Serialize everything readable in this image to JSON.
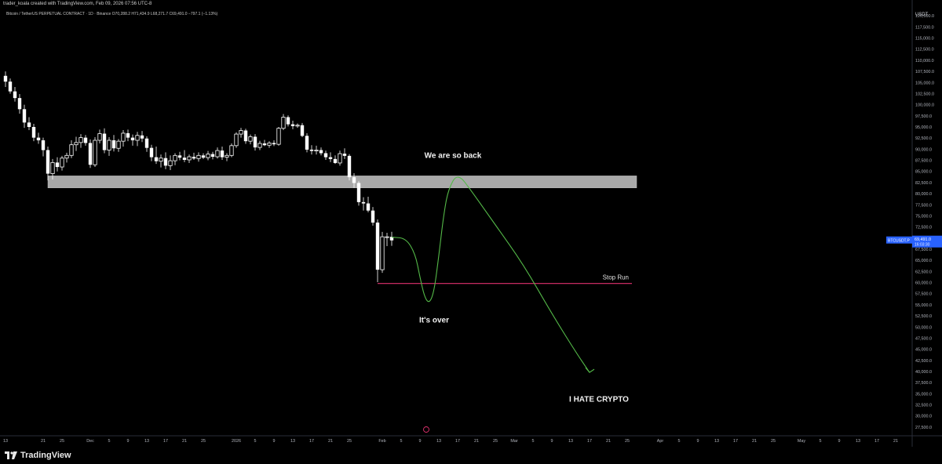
{
  "header": {
    "attribution": "trader_koala created with TradingView.com, Feb 09, 2026 07:56 UTC-8",
    "symbol_line": "Bitcoin / TetherUS PERPETUAL CONTRACT · 1D · Binance  O70,288.2  H71,434.9  L68,271.7  C69,491.0  −797.1 (−1.13%)"
  },
  "footer": {
    "brand": "TradingView"
  },
  "chart_data": {
    "type": "candlestick",
    "currency": "USDT",
    "ylim": [
      26250,
      122500
    ],
    "y_ticks": [
      120000,
      117500,
      115000,
      112500,
      110000,
      107500,
      105000,
      102500,
      100000,
      97500,
      95000,
      92500,
      90000,
      87500,
      85000,
      82500,
      80000,
      77500,
      75000,
      72500,
      70000,
      67500,
      65000,
      62500,
      60000,
      57500,
      55000,
      52500,
      50000,
      47500,
      45000,
      42500,
      40000,
      37500,
      35000,
      32500,
      30000,
      27500
    ],
    "y_tick_labels": [
      "120,000.0",
      "117,500.0",
      "115,000.0",
      "112,500.0",
      "110,000.0",
      "107,500.0",
      "105,000.0",
      "102,500.0",
      "100,000.0",
      "97,500.0",
      "95,000.0",
      "92,500.0",
      "90,000.0",
      "87,500.0",
      "85,000.0",
      "82,500.0",
      "80,000.0",
      "77,500.0",
      "75,000.0",
      "72,500.0",
      "70,000.0",
      "67,500.0",
      "65,000.0",
      "62,500.0",
      "60,000.0",
      "57,500.0",
      "55,000.0",
      "52,500.0",
      "50,000.0",
      "47,500.0",
      "45,000.0",
      "42,500.0",
      "40,000.0",
      "37,500.0",
      "35,000.0",
      "32,500.0",
      "30,000.0",
      "27,500.0"
    ],
    "x_labels": [
      {
        "day": 0,
        "label": "13"
      },
      {
        "day": 8,
        "label": "21"
      },
      {
        "day": 12,
        "label": "25"
      },
      {
        "day": 18,
        "label": "Dec"
      },
      {
        "day": 22,
        "label": "5"
      },
      {
        "day": 26,
        "label": "9"
      },
      {
        "day": 30,
        "label": "13"
      },
      {
        "day": 34,
        "label": "17"
      },
      {
        "day": 38,
        "label": "21"
      },
      {
        "day": 42,
        "label": "25"
      },
      {
        "day": 49,
        "label": "2026"
      },
      {
        "day": 53,
        "label": "5"
      },
      {
        "day": 57,
        "label": "9"
      },
      {
        "day": 61,
        "label": "13"
      },
      {
        "day": 65,
        "label": "17"
      },
      {
        "day": 69,
        "label": "21"
      },
      {
        "day": 73,
        "label": "25"
      },
      {
        "day": 80,
        "label": "Feb"
      },
      {
        "day": 84,
        "label": "5"
      },
      {
        "day": 88,
        "label": "9"
      },
      {
        "day": 92,
        "label": "13"
      },
      {
        "day": 96,
        "label": "17"
      },
      {
        "day": 100,
        "label": "21"
      },
      {
        "day": 104,
        "label": "25"
      },
      {
        "day": 108,
        "label": "Mar"
      },
      {
        "day": 112,
        "label": "5"
      },
      {
        "day": 116,
        "label": "9"
      },
      {
        "day": 120,
        "label": "13"
      },
      {
        "day": 124,
        "label": "17"
      },
      {
        "day": 128,
        "label": "21"
      },
      {
        "day": 132,
        "label": "25"
      },
      {
        "day": 139,
        "label": "Apr"
      },
      {
        "day": 143,
        "label": "5"
      },
      {
        "day": 147,
        "label": "9"
      },
      {
        "day": 151,
        "label": "13"
      },
      {
        "day": 155,
        "label": "17"
      },
      {
        "day": 159,
        "label": "21"
      },
      {
        "day": 163,
        "label": "25"
      },
      {
        "day": 169,
        "label": "May"
      },
      {
        "day": 173,
        "label": "5"
      },
      {
        "day": 177,
        "label": "9"
      },
      {
        "day": 181,
        "label": "13"
      },
      {
        "day": 185,
        "label": "17"
      },
      {
        "day": 189,
        "label": "21"
      }
    ],
    "candles": [
      {
        "day": 0,
        "o": 106500,
        "h": 107500,
        "l": 104000,
        "c": 105200
      },
      {
        "day": 1,
        "o": 105200,
        "h": 105900,
        "l": 102500,
        "c": 103000
      },
      {
        "day": 2,
        "o": 103000,
        "h": 104000,
        "l": 100700,
        "c": 101500
      },
      {
        "day": 3,
        "o": 101500,
        "h": 102400,
        "l": 98000,
        "c": 99000
      },
      {
        "day": 4,
        "o": 99000,
        "h": 100000,
        "l": 94800,
        "c": 96000
      },
      {
        "day": 5,
        "o": 96000,
        "h": 97200,
        "l": 94300,
        "c": 95000
      },
      {
        "day": 6,
        "o": 95000,
        "h": 95700,
        "l": 91800,
        "c": 92600
      },
      {
        "day": 7,
        "o": 92600,
        "h": 93700,
        "l": 91200,
        "c": 92000
      },
      {
        "day": 8,
        "o": 92000,
        "h": 92600,
        "l": 88400,
        "c": 89800
      },
      {
        "day": 9,
        "o": 89800,
        "h": 90600,
        "l": 83000,
        "c": 84500
      },
      {
        "day": 10,
        "o": 84500,
        "h": 87800,
        "l": 83200,
        "c": 87000
      },
      {
        "day": 11,
        "o": 87000,
        "h": 88200,
        "l": 85000,
        "c": 86000
      },
      {
        "day": 12,
        "o": 86000,
        "h": 88500,
        "l": 85200,
        "c": 88000
      },
      {
        "day": 13,
        "o": 88000,
        "h": 89200,
        "l": 87000,
        "c": 88600
      },
      {
        "day": 14,
        "o": 88600,
        "h": 92000,
        "l": 88000,
        "c": 91000
      },
      {
        "day": 15,
        "o": 91000,
        "h": 92800,
        "l": 89600,
        "c": 91500
      },
      {
        "day": 16,
        "o": 91500,
        "h": 93400,
        "l": 90300,
        "c": 92600
      },
      {
        "day": 17,
        "o": 92600,
        "h": 93200,
        "l": 90800,
        "c": 91400
      },
      {
        "day": 18,
        "o": 91400,
        "h": 92200,
        "l": 85800,
        "c": 86500
      },
      {
        "day": 19,
        "o": 86500,
        "h": 92700,
        "l": 86000,
        "c": 92000
      },
      {
        "day": 20,
        "o": 92000,
        "h": 94400,
        "l": 91300,
        "c": 93500
      },
      {
        "day": 21,
        "o": 93500,
        "h": 94700,
        "l": 89100,
        "c": 89800
      },
      {
        "day": 22,
        "o": 89800,
        "h": 92700,
        "l": 88500,
        "c": 92000
      },
      {
        "day": 23,
        "o": 92000,
        "h": 93200,
        "l": 89500,
        "c": 90200
      },
      {
        "day": 24,
        "o": 90200,
        "h": 92300,
        "l": 89400,
        "c": 91800
      },
      {
        "day": 25,
        "o": 91800,
        "h": 94300,
        "l": 90600,
        "c": 93600
      },
      {
        "day": 26,
        "o": 93600,
        "h": 94400,
        "l": 91800,
        "c": 92600
      },
      {
        "day": 27,
        "o": 92600,
        "h": 93300,
        "l": 90800,
        "c": 92000
      },
      {
        "day": 28,
        "o": 92000,
        "h": 93900,
        "l": 90700,
        "c": 93100
      },
      {
        "day": 29,
        "o": 93100,
        "h": 94100,
        "l": 91600,
        "c": 92400
      },
      {
        "day": 30,
        "o": 92400,
        "h": 92900,
        "l": 89400,
        "c": 90300
      },
      {
        "day": 31,
        "o": 90300,
        "h": 91000,
        "l": 87300,
        "c": 88200
      },
      {
        "day": 32,
        "o": 88200,
        "h": 90600,
        "l": 86700,
        "c": 87300
      },
      {
        "day": 33,
        "o": 87300,
        "h": 88800,
        "l": 85900,
        "c": 88000
      },
      {
        "day": 34,
        "o": 88000,
        "h": 89300,
        "l": 85500,
        "c": 86300
      },
      {
        "day": 35,
        "o": 86300,
        "h": 88600,
        "l": 85300,
        "c": 87400
      },
      {
        "day": 36,
        "o": 87400,
        "h": 89100,
        "l": 86400,
        "c": 88600
      },
      {
        "day": 37,
        "o": 88600,
        "h": 89400,
        "l": 87500,
        "c": 88100
      },
      {
        "day": 38,
        "o": 88100,
        "h": 89800,
        "l": 87100,
        "c": 87600
      },
      {
        "day": 39,
        "o": 87600,
        "h": 88800,
        "l": 86900,
        "c": 88300
      },
      {
        "day": 40,
        "o": 88300,
        "h": 89200,
        "l": 87600,
        "c": 87900
      },
      {
        "day": 41,
        "o": 87900,
        "h": 89300,
        "l": 87200,
        "c": 88600
      },
      {
        "day": 42,
        "o": 88600,
        "h": 89100,
        "l": 87800,
        "c": 88100
      },
      {
        "day": 43,
        "o": 88100,
        "h": 89600,
        "l": 87500,
        "c": 88900
      },
      {
        "day": 44,
        "o": 88900,
        "h": 89400,
        "l": 87700,
        "c": 88300
      },
      {
        "day": 45,
        "o": 88300,
        "h": 90400,
        "l": 87900,
        "c": 89700
      },
      {
        "day": 46,
        "o": 89700,
        "h": 90600,
        "l": 87600,
        "c": 88200
      },
      {
        "day": 47,
        "o": 88200,
        "h": 89100,
        "l": 87300,
        "c": 88600
      },
      {
        "day": 48,
        "o": 88600,
        "h": 91300,
        "l": 88200,
        "c": 90800
      },
      {
        "day": 49,
        "o": 90800,
        "h": 93800,
        "l": 90300,
        "c": 93400
      },
      {
        "day": 50,
        "o": 93400,
        "h": 94800,
        "l": 92600,
        "c": 94200
      },
      {
        "day": 51,
        "o": 94200,
        "h": 94600,
        "l": 91200,
        "c": 91800
      },
      {
        "day": 52,
        "o": 91800,
        "h": 93300,
        "l": 91100,
        "c": 92800
      },
      {
        "day": 53,
        "o": 92800,
        "h": 93400,
        "l": 89700,
        "c": 90400
      },
      {
        "day": 54,
        "o": 90400,
        "h": 91900,
        "l": 89800,
        "c": 91300
      },
      {
        "day": 55,
        "o": 91300,
        "h": 92100,
        "l": 90700,
        "c": 90900
      },
      {
        "day": 56,
        "o": 90900,
        "h": 91800,
        "l": 90300,
        "c": 91400
      },
      {
        "day": 57,
        "o": 91400,
        "h": 92000,
        "l": 90700,
        "c": 91100
      },
      {
        "day": 58,
        "o": 91100,
        "h": 95000,
        "l": 90800,
        "c": 94700
      },
      {
        "day": 59,
        "o": 94700,
        "h": 97900,
        "l": 94300,
        "c": 97200
      },
      {
        "day": 60,
        "o": 97200,
        "h": 97600,
        "l": 95100,
        "c": 95600
      },
      {
        "day": 61,
        "o": 95600,
        "h": 96400,
        "l": 94500,
        "c": 95200
      },
      {
        "day": 62,
        "o": 95200,
        "h": 95800,
        "l": 94800,
        "c": 95400
      },
      {
        "day": 63,
        "o": 95400,
        "h": 95900,
        "l": 92700,
        "c": 93000
      },
      {
        "day": 64,
        "o": 93000,
        "h": 93600,
        "l": 89300,
        "c": 89900
      },
      {
        "day": 65,
        "o": 89900,
        "h": 90900,
        "l": 88800,
        "c": 89600
      },
      {
        "day": 66,
        "o": 89600,
        "h": 90800,
        "l": 88800,
        "c": 89800
      },
      {
        "day": 67,
        "o": 89800,
        "h": 90400,
        "l": 88600,
        "c": 89100
      },
      {
        "day": 68,
        "o": 89100,
        "h": 89700,
        "l": 87600,
        "c": 88200
      },
      {
        "day": 69,
        "o": 88200,
        "h": 89300,
        "l": 87100,
        "c": 87800
      },
      {
        "day": 70,
        "o": 87800,
        "h": 88600,
        "l": 86700,
        "c": 86900
      },
      {
        "day": 71,
        "o": 86900,
        "h": 89700,
        "l": 86300,
        "c": 89000
      },
      {
        "day": 72,
        "o": 89000,
        "h": 90200,
        "l": 87800,
        "c": 88500
      },
      {
        "day": 73,
        "o": 88500,
        "h": 88900,
        "l": 83000,
        "c": 83700
      },
      {
        "day": 74,
        "o": 83700,
        "h": 84600,
        "l": 81300,
        "c": 82400
      },
      {
        "day": 75,
        "o": 82400,
        "h": 82800,
        "l": 77300,
        "c": 78100
      },
      {
        "day": 76,
        "o": 78100,
        "h": 79200,
        "l": 76200,
        "c": 77800
      },
      {
        "day": 77,
        "o": 77800,
        "h": 79300,
        "l": 75800,
        "c": 76200
      },
      {
        "day": 78,
        "o": 76200,
        "h": 77000,
        "l": 72800,
        "c": 73500
      },
      {
        "day": 79,
        "o": 73500,
        "h": 74200,
        "l": 60100,
        "c": 62900
      },
      {
        "day": 80,
        "o": 62900,
        "h": 71400,
        "l": 62200,
        "c": 70300
      },
      {
        "day": 81,
        "o": 70300,
        "h": 71200,
        "l": 68200,
        "c": 70300
      },
      {
        "day": 82,
        "o": 70300,
        "h": 71430,
        "l": 68270,
        "c": 69491
      }
    ],
    "support_zone": {
      "from_day": 9,
      "to_day": 134,
      "low": 81300,
      "high": 84000
    },
    "stop_run_line": {
      "from_day": 79,
      "to_day": 133,
      "price": 59800,
      "label": "Stop Run",
      "color": "#e0306e"
    },
    "forecast_path": {
      "color": "#54b948",
      "points": [
        [
          82,
          70200
        ],
        [
          85,
          70000
        ],
        [
          87,
          66500
        ],
        [
          88,
          61200
        ],
        [
          89,
          56600
        ],
        [
          90,
          55300
        ],
        [
          91,
          58000
        ],
        [
          92,
          66000
        ],
        [
          93,
          75000
        ],
        [
          94,
          81000
        ],
        [
          96,
          84700
        ],
        [
          99,
          80500
        ],
        [
          104,
          73000
        ],
        [
          110,
          64000
        ],
        [
          116,
          53000
        ],
        [
          121,
          44500
        ],
        [
          124,
          39800
        ]
      ],
      "arrow_tip_day": 124
    },
    "annotations": [
      {
        "text": "We are so back",
        "day": 95,
        "price": 88000
      },
      {
        "text": "It's over",
        "day": 91,
        "price": 51000
      },
      {
        "text": "I HATE CRYPTO",
        "day": 126,
        "price": 33200
      }
    ],
    "last_price": {
      "symbol": "BTCUSDT.P",
      "price": "69,491.0",
      "countdown": "16:03:30",
      "color": "#2962ff"
    },
    "up_color": "#ffffff",
    "down_color": "#ffffff",
    "grid": false
  }
}
